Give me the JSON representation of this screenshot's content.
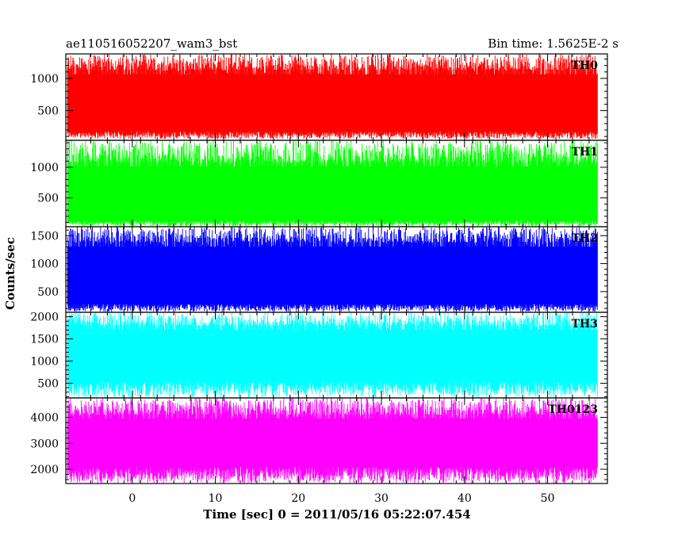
{
  "chart_data": {
    "type": "line",
    "title_left": "ae110516052207_wam3_bst",
    "title_right": "Bin time: 1.5625E-2 s",
    "xlabel": "Time [sec] 0 = 2011/05/16 05:22:07.454",
    "ylabel": "Counts/sec",
    "xlim": [
      -8,
      57.2
    ],
    "x_range": [
      -7.8,
      56.0
    ],
    "x_ticks": [
      0,
      10,
      20,
      30,
      40,
      50
    ],
    "panels": [
      {
        "name": "TH0",
        "color": "#ff0000",
        "ylim": [
          40,
          1380
        ],
        "y_ticks": [
          500,
          1000
        ],
        "min": 60,
        "max": 1380,
        "low_band": 180,
        "high_band": 1130
      },
      {
        "name": "TH1",
        "color": "#00ff00",
        "ylim": [
          30,
          1440
        ],
        "y_ticks": [
          500,
          1000
        ],
        "min": 40,
        "max": 1440,
        "low_band": 130,
        "high_band": 1080
      },
      {
        "name": "TH2",
        "color": "#0000ff",
        "ylim": [
          130,
          1660
        ],
        "y_ticks": [
          500,
          1000,
          1500
        ],
        "min": 140,
        "max": 1660,
        "low_band": 280,
        "high_band": 1380
      },
      {
        "name": "TH3",
        "color": "#00ffff",
        "ylim": [
          170,
          2100
        ],
        "y_ticks": [
          500,
          1000,
          1500,
          2000
        ],
        "min": 180,
        "max": 2100,
        "low_band": 550,
        "high_band": 1800
      },
      {
        "name": "TH0123",
        "color": "#ff00ff",
        "ylim": [
          1450,
          4750
        ],
        "y_ticks": [
          2000,
          3000,
          4000
        ],
        "min": 1460,
        "max": 4750,
        "low_band": 2100,
        "high_band": 4100
      }
    ]
  }
}
